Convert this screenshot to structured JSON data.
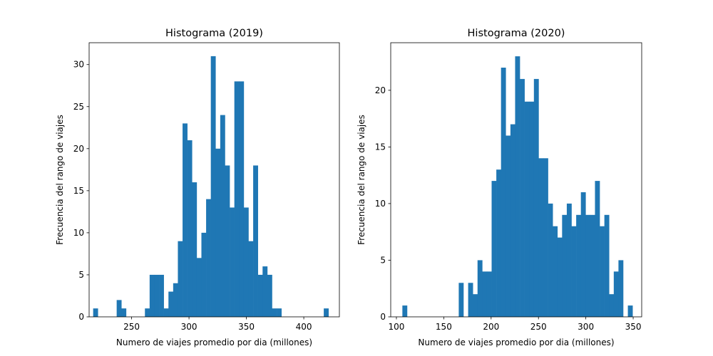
{
  "chart_data": [
    {
      "type": "bar",
      "title": "Histograma (2019)",
      "xlabel": "Numero de viajes promedio por dia (millones)",
      "ylabel": "Frecuencia del rango de viajes",
      "xlim": [
        213,
        431
      ],
      "ylim": [
        0,
        32.6
      ],
      "xticks": [
        250,
        300,
        350,
        400
      ],
      "yticks": [
        0,
        5,
        10,
        15,
        20,
        25,
        30
      ],
      "bin_start": 216.5,
      "bin_width": 4.1,
      "counts": [
        1,
        0,
        0,
        0,
        0,
        2,
        1,
        0,
        0,
        0,
        0,
        1,
        5,
        5,
        5,
        1,
        3,
        4,
        9,
        23,
        21,
        16,
        7,
        10,
        14,
        31,
        20,
        24,
        18,
        13,
        28,
        28,
        13,
        9,
        18,
        5,
        6,
        5,
        1,
        1,
        0,
        0,
        0,
        0,
        0,
        0,
        0,
        0,
        0,
        1
      ],
      "grid": false,
      "legend": "none",
      "color": "#1f77b4"
    },
    {
      "type": "bar",
      "title": "Histograma (2020)",
      "xlabel": "Numero de viajes promedio por dia (millones)",
      "ylabel": "Frecuencia del rango de viajes",
      "xlim": [
        94,
        359
      ],
      "ylim": [
        0,
        24.2
      ],
      "xticks": [
        100,
        150,
        200,
        250,
        300,
        350
      ],
      "yticks": [
        0,
        5,
        10,
        15,
        20
      ],
      "bin_start": 106.3,
      "bin_width": 4.96,
      "counts": [
        1,
        0,
        0,
        0,
        0,
        0,
        0,
        0,
        0,
        0,
        0,
        0,
        3,
        0,
        3,
        2,
        5,
        4,
        4,
        12,
        13,
        22,
        16,
        17,
        23,
        21,
        19,
        19,
        21,
        14,
        14,
        10,
        8,
        7,
        9,
        10,
        8,
        9,
        11,
        9,
        9,
        12,
        8,
        9,
        2,
        4,
        5,
        0,
        1
      ],
      "grid": false,
      "legend": "none",
      "color": "#1f77b4"
    }
  ]
}
